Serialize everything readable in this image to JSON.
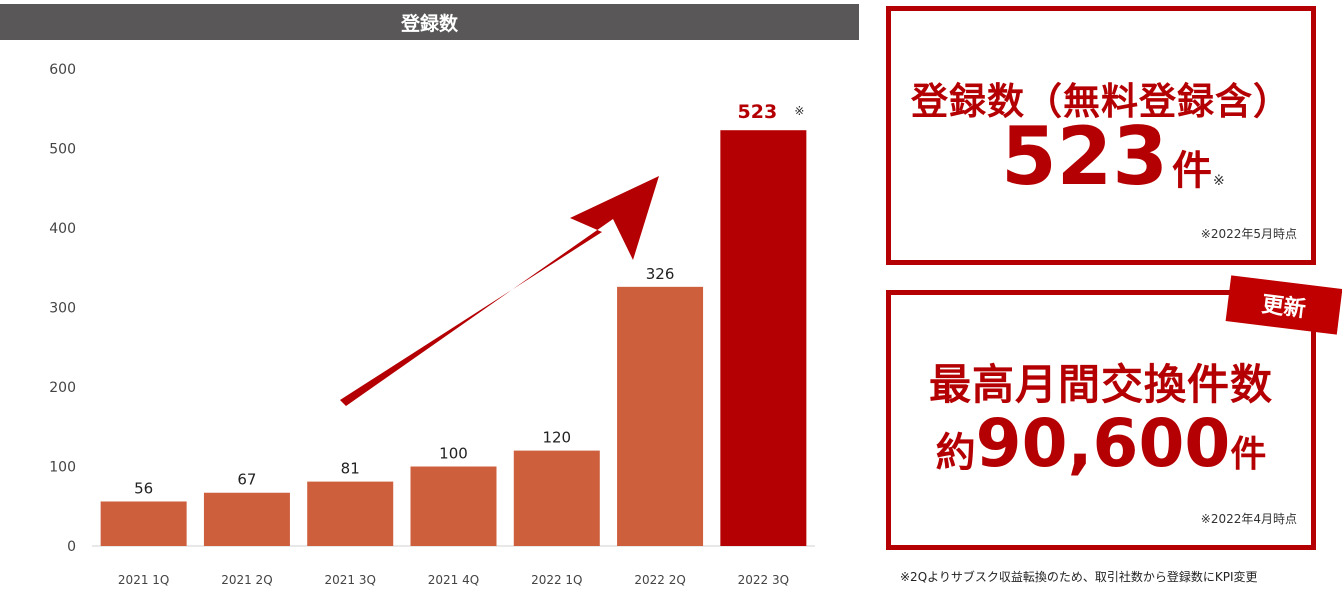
{
  "chart_data": {
    "type": "bar",
    "title": "登録数",
    "categories": [
      "2021 1Q",
      "2021 2Q",
      "2021 3Q",
      "2021 4Q",
      "2022 1Q",
      "2022 2Q",
      "2022 3Q"
    ],
    "values": [
      56,
      67,
      81,
      100,
      120,
      326,
      523
    ],
    "ylim": [
      0,
      600
    ],
    "yticks": [
      0,
      100,
      200,
      300,
      400,
      500,
      600
    ],
    "data_labels": [
      "56",
      "67",
      "81",
      "100",
      "120",
      "326",
      "523"
    ],
    "highlight_index": 6,
    "highlight_note": "※",
    "grid": false,
    "colors": {
      "bar": "#cd5f3c",
      "highlight": "#b50003",
      "arrow": "#b50003"
    }
  },
  "panel1": {
    "title": "登録数（無料登録含）",
    "value": "523",
    "unit": "件",
    "mark": "※",
    "as_of": "※2022年5月時点"
  },
  "panel2": {
    "badge": "更新",
    "title": "最高月間交換件数",
    "prefix": "約",
    "value": "90,600",
    "unit": "件",
    "as_of": "※2022年4月時点"
  },
  "footnote": "※2Qよりサブスク収益転換のため、取引社数から登録数にKPI変更"
}
